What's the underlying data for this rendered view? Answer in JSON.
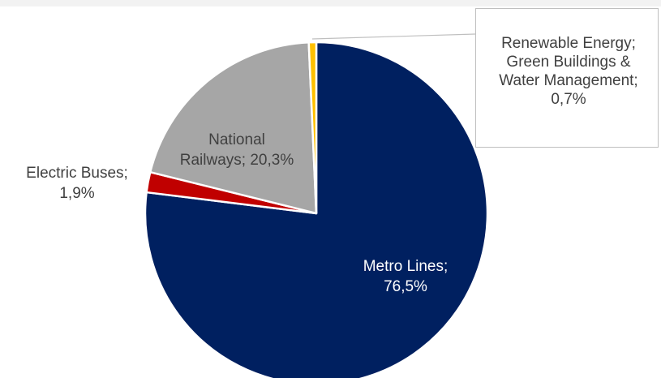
{
  "chart_data": {
    "type": "pie",
    "title": "",
    "start_angle_deg": 0,
    "direction": "clockwise",
    "slices": [
      {
        "label": "Metro Lines",
        "value": 76.5,
        "display": "Metro Lines; 76,5%",
        "lines": [
          "Metro Lines;",
          "76,5%"
        ],
        "color": "#002060",
        "label_color": "#ffffff"
      },
      {
        "label": "Electric Buses",
        "value": 1.9,
        "display": "Electric Buses; 1,9%",
        "lines": [
          "Electric Buses;",
          "1,9%"
        ],
        "color": "#c00000",
        "label_color": "#404040"
      },
      {
        "label": "National Railways",
        "value": 20.3,
        "display": "National Railways; 20,3%",
        "lines": [
          "National",
          "Railways; 20,3%"
        ],
        "color": "#a6a6a6",
        "label_color": "#404040"
      },
      {
        "label": "Renewable Energy; Green Buildings & Water Management",
        "value": 0.7,
        "display": "Renewable Energy; Green Buildings & Water Management; 0,7%",
        "lines": [
          "Renewable Energy;",
          "Green Buildings &",
          "Water Management;",
          "0,7%"
        ],
        "color": "#ffc000",
        "label_color": "#404040"
      }
    ],
    "legend": "none"
  }
}
